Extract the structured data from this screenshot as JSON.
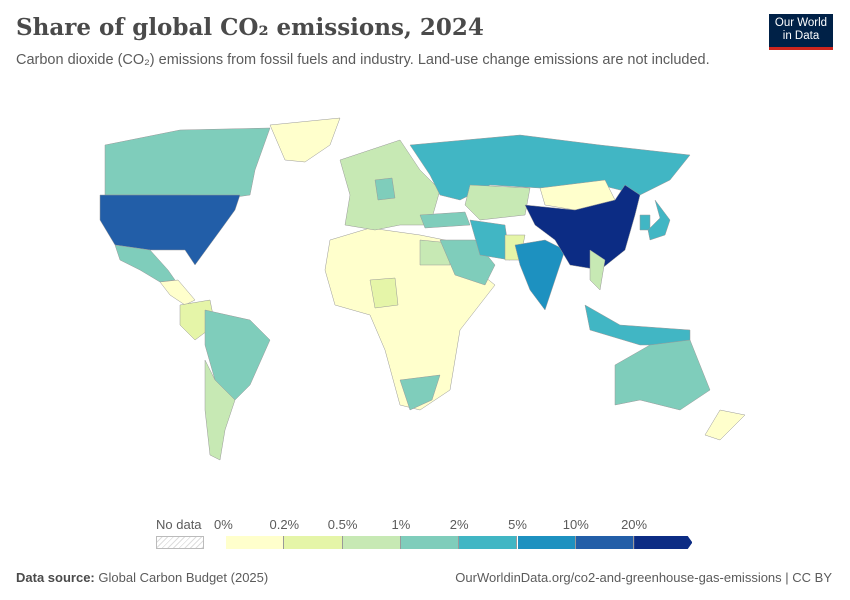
{
  "header": {
    "title": "Share of global CO₂ emissions, 2024",
    "subtitle": "Carbon dioxide (CO₂) emissions from fossil fuels and industry. Land-use change emissions are not included.",
    "logo": "Our World in Data"
  },
  "legend": {
    "no_data_label": "No data",
    "ticks": [
      "0%",
      "0.2%",
      "0.5%",
      "1%",
      "2%",
      "5%",
      "10%",
      "20%"
    ],
    "colors": [
      "#ffffcc",
      "#e5f5a8",
      "#c7e9b4",
      "#7fcdbb",
      "#41b6c4",
      "#1d91c0",
      "#225ea8",
      "#0c2c84"
    ],
    "no_data_color": "#e8e8e8"
  },
  "chart_data": {
    "type": "choropleth",
    "title": "Share of global CO₂ emissions, 2024",
    "bins": [
      "0-0.2%",
      "0.2-0.5%",
      "0.5-1%",
      "1-2%",
      "2-5%",
      "5-10%",
      "10-20%",
      ">20%"
    ],
    "regions": {
      "China": 7,
      "United States": 6,
      "India": 5,
      "Russia": 4,
      "Japan": 4,
      "Iran": 4,
      "Indonesia": 4,
      "South Korea": 4,
      "Canada": 3,
      "Mexico": 3,
      "Brazil": 3,
      "Saudi Arabia": 3,
      "Australia": 3,
      "South Africa": 3,
      "Germany": 3,
      "Turkey": 3,
      "Kazakhstan": 2,
      "Europe (other)": 2,
      "Argentina": 2,
      "Egypt": 2,
      "Vietnam": 2,
      "Nigeria": 1,
      "Pakistan": 1,
      "Greenland": 0,
      "Africa (other)": 0,
      "Mongolia": 0,
      "Colombia": 1,
      "New Zealand": 0,
      "Central America": 0
    }
  },
  "footer": {
    "source_label": "Data source:",
    "source": "Global Carbon Budget (2025)",
    "url": "OurWorldinData.org/co2-and-greenhouse-gas-emissions | CC BY"
  }
}
